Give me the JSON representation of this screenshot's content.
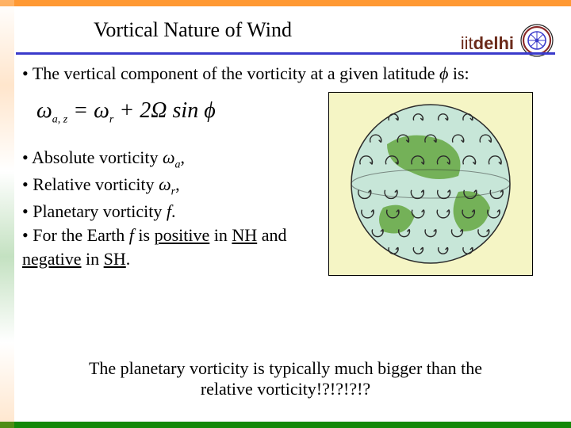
{
  "header": {
    "title": "Vortical Nature of Wind",
    "brand_iit": "iit",
    "brand_delhi": "delhi"
  },
  "logo": {
    "outer_color": "#8a2a2a",
    "inner_color": "#3a3acb",
    "stroke": "#222222"
  },
  "intro": {
    "prefix": "The vertical component of the vorticity at a given latitude  ",
    "phi": "ϕ",
    "suffix": " is:"
  },
  "equation": {
    "lhs_omega": "ω",
    "lhs_sub": "a, z",
    "eq": " = ",
    "r_omega": "ω",
    "r_sub": "r",
    "plus": " + 2Ω sin ",
    "phi": "ϕ"
  },
  "bullets": {
    "b1_pre": "Absolute vorticity ",
    "b1_sym": "ω",
    "b1_sub": "a",
    "b1_post": ",",
    "b2_pre": "Relative vorticity ",
    "b2_sym": "ω",
    "b2_sub": "r",
    "b2_post": ",",
    "b3_pre": "Planetary vorticity ",
    "b3_sym": "f",
    "b3_post": ".",
    "b4_pre": "For the Earth ",
    "b4_f": "f",
    "b4_mid1": " is ",
    "b4_pos": "positive",
    "b4_mid2": " in ",
    "b4_nh": "NH",
    "b4_mid3": " and ",
    "b4_neg": "negative",
    "b4_mid4": " in ",
    "b4_sh": "SH",
    "b4_end": "."
  },
  "globe": {
    "ocean_color": "#c7e6d8",
    "land_color": "#6aab4a",
    "outline_color": "#2b2b2b",
    "swirl_color": "#2b2b2b",
    "background": "#f5f5c5",
    "rows_NH": 4,
    "rows_SH": 4
  },
  "footer": {
    "line1": "The planetary vorticity is typically much bigger than the",
    "line2": "relative vorticity!?!?!?!?"
  },
  "colors": {
    "rule": "#3a3acb",
    "top_bar": "#ff9933",
    "bottom_bar": "#138808",
    "brand": "#6b2a1a"
  }
}
